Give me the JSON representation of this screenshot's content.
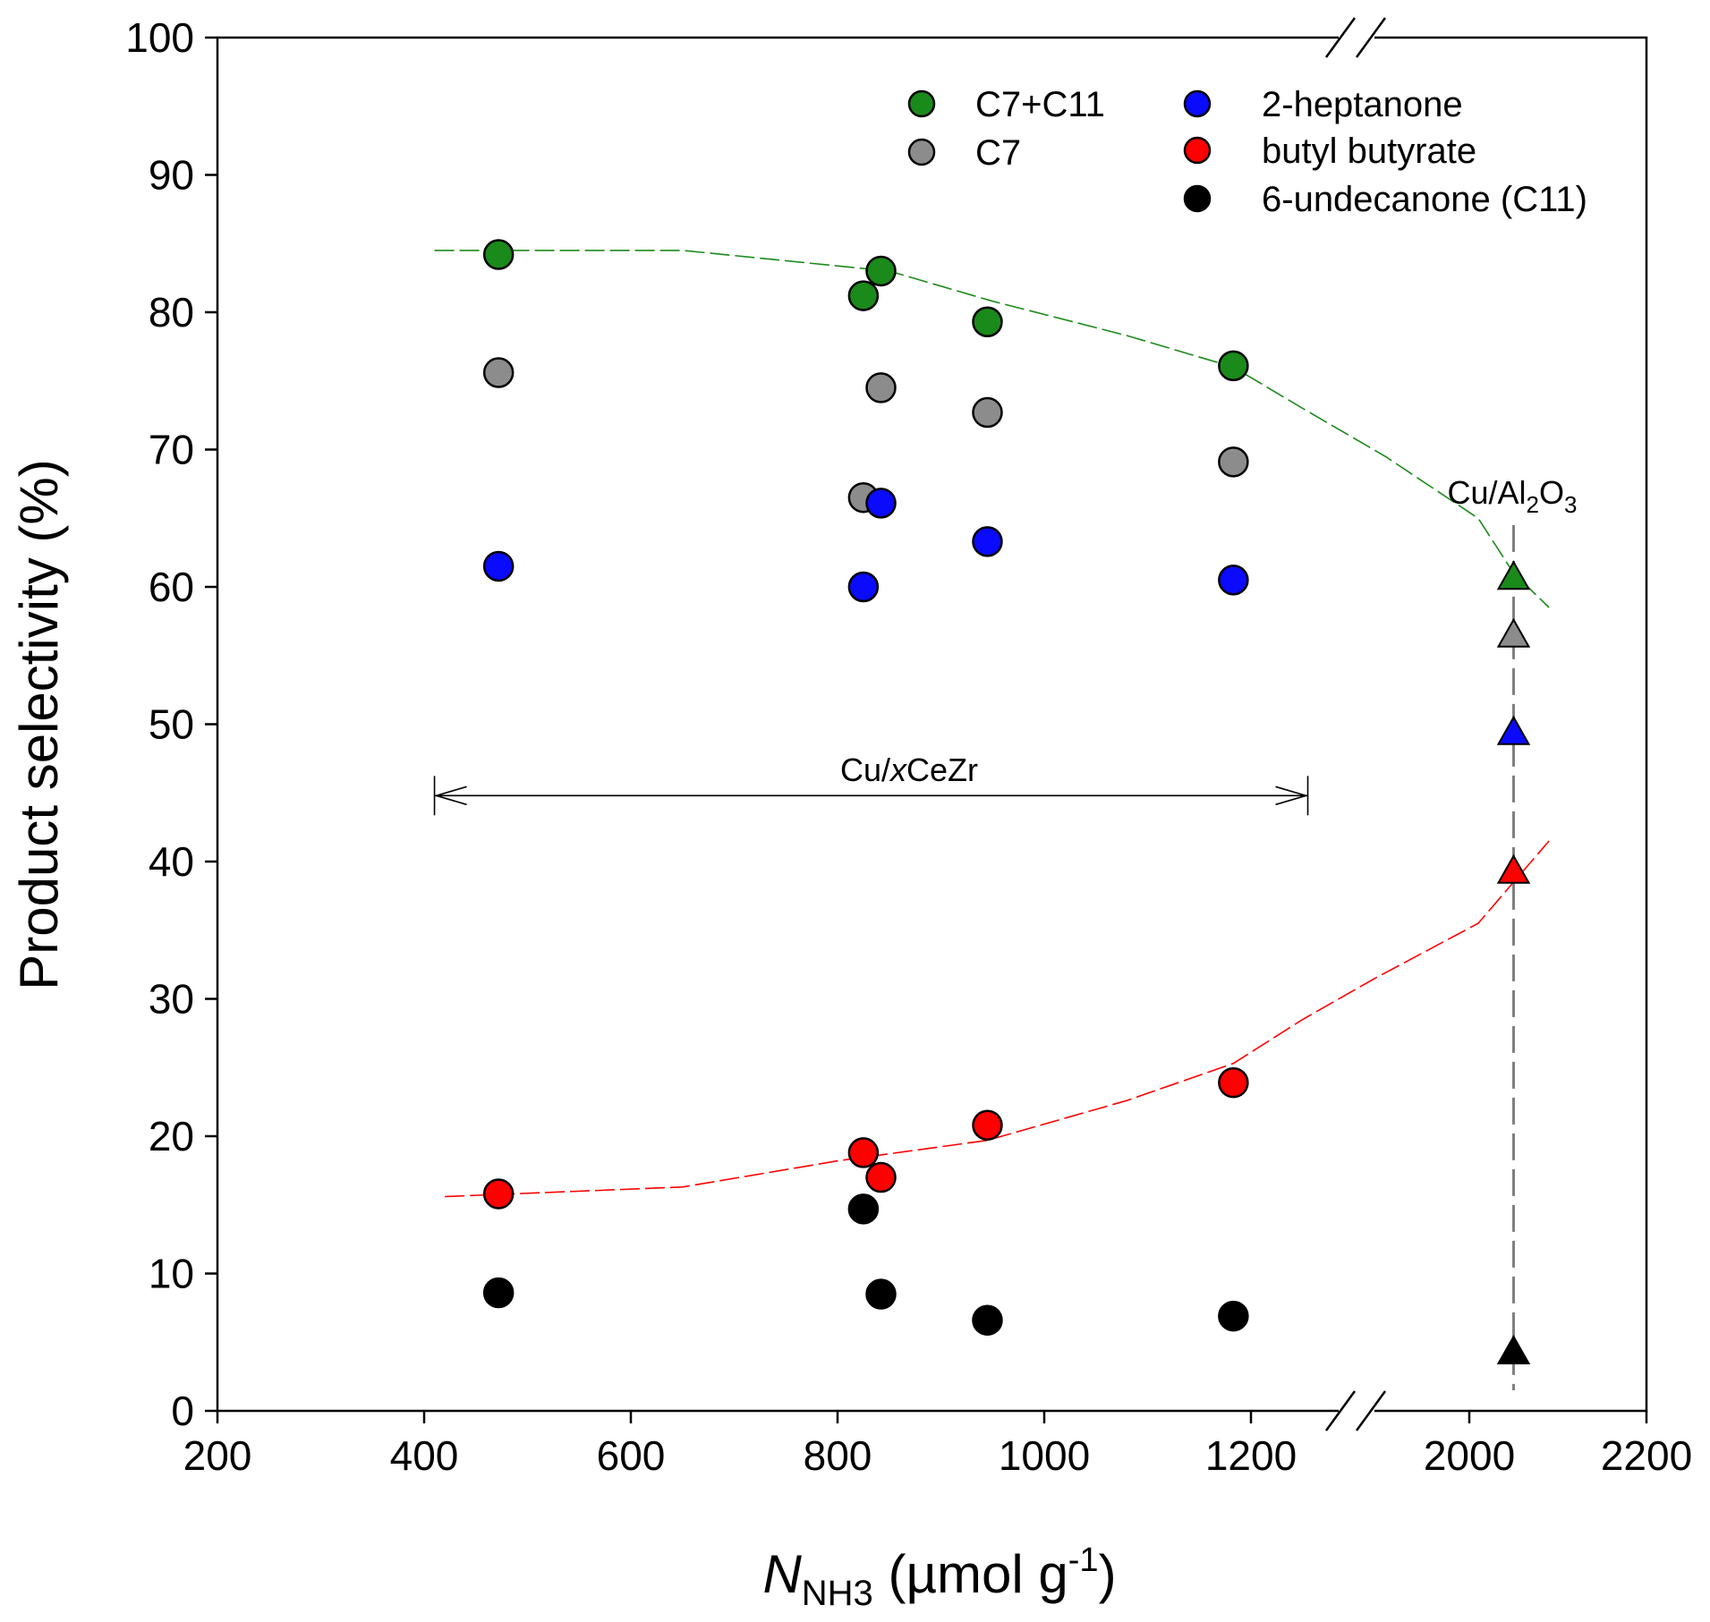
{
  "chart_data": {
    "type": "scatter",
    "title": "",
    "xlabel": "N",
    "xlabel_sub": "NH3",
    "xlabel_unit_open": " (µmol g",
    "xlabel_unit_sup": "-1",
    "xlabel_unit_close": ")",
    "ylabel": "Product selectivity (%)",
    "ylim": [
      0,
      100
    ],
    "yticks": [
      0,
      10,
      20,
      30,
      40,
      50,
      60,
      70,
      80,
      90,
      100
    ],
    "xlim": [
      200,
      2200
    ],
    "xticks": [
      200,
      400,
      600,
      800,
      1000,
      1200,
      2000,
      2200
    ],
    "x_break": "broken axis between 1200 and 2000",
    "grid": false,
    "legend_position": "top-right",
    "series": [
      {
        "name": "C7+C11",
        "color": "#1a8a1a",
        "marker": "circle",
        "points": [
          [
            472,
            84.2
          ],
          [
            825,
            81.2
          ],
          [
            842,
            83.0
          ],
          [
            945,
            79.3
          ],
          [
            1183,
            76.1
          ]
        ]
      },
      {
        "name": "C7",
        "color": "#8c8c8c",
        "marker": "circle",
        "points": [
          [
            472,
            75.6
          ],
          [
            825,
            66.5
          ],
          [
            842,
            74.5
          ],
          [
            945,
            72.7
          ],
          [
            1183,
            69.1
          ]
        ]
      },
      {
        "name": "2-heptanone",
        "color": "#0a0aff",
        "marker": "circle",
        "points": [
          [
            472,
            61.5
          ],
          [
            825,
            60.0
          ],
          [
            842,
            66.1
          ],
          [
            945,
            63.3
          ],
          [
            1183,
            60.5
          ]
        ]
      },
      {
        "name": "butyl butyrate",
        "color": "#ff0000",
        "marker": "circle",
        "points": [
          [
            472,
            15.8
          ],
          [
            825,
            18.8
          ],
          [
            842,
            17.0
          ],
          [
            945,
            20.8
          ],
          [
            1183,
            23.9
          ]
        ]
      },
      {
        "name": "6-undecanone (C11)",
        "color": "#000000",
        "marker": "circle",
        "points": [
          [
            472,
            8.6
          ],
          [
            825,
            14.7
          ],
          [
            842,
            8.5
          ],
          [
            945,
            6.6
          ],
          [
            1183,
            6.9
          ]
        ]
      }
    ],
    "cu_al2o3": {
      "x": 2050,
      "points": [
        {
          "series": "C7+C11",
          "y": 60.7,
          "color": "#1a8a1a"
        },
        {
          "series": "C7",
          "y": 56.5,
          "color": "#8c8c8c"
        },
        {
          "series": "2-heptanone",
          "y": 49.4,
          "color": "#0a0aff"
        },
        {
          "series": "butyl butyrate",
          "y": 39.3,
          "color": "#ff0000"
        },
        {
          "series": "6-undecanone (C11)",
          "y": 4.3,
          "color": "#000000"
        }
      ]
    },
    "trend_lines": [
      {
        "name": "C7+C11 trend",
        "color": "#1a8a1a",
        "points": [
          [
            410,
            84.5
          ],
          [
            650,
            84.5
          ],
          [
            850,
            83.0
          ],
          [
            950,
            80.8
          ],
          [
            1080,
            78.3
          ],
          [
            1183,
            76.0
          ],
          [
            1250,
            73.0
          ],
          [
            1330,
            69.5
          ],
          [
            2010,
            65.0
          ],
          [
            2050,
            61.0
          ],
          [
            2090,
            58.5
          ]
        ]
      },
      {
        "name": "butyl butyrate trend",
        "color": "#ff0000",
        "points": [
          [
            420,
            15.6
          ],
          [
            650,
            16.3
          ],
          [
            800,
            18.2
          ],
          [
            945,
            19.7
          ],
          [
            1080,
            22.6
          ],
          [
            1183,
            25.3
          ],
          [
            1250,
            28.5
          ],
          [
            1320,
            31.5
          ],
          [
            2010,
            35.5
          ],
          [
            2050,
            38.5
          ],
          [
            2090,
            41.5
          ]
        ]
      }
    ],
    "annotations": {
      "range_label_pre": "Cu/",
      "range_label_it": "x",
      "range_label_post": "CeZr",
      "range_x": [
        410,
        1255
      ],
      "range_y": 44.8,
      "cu_label_pre": "Cu/Al",
      "cu_label_sub1": "2",
      "cu_label_mid": "O",
      "cu_label_sub2": "3"
    }
  }
}
